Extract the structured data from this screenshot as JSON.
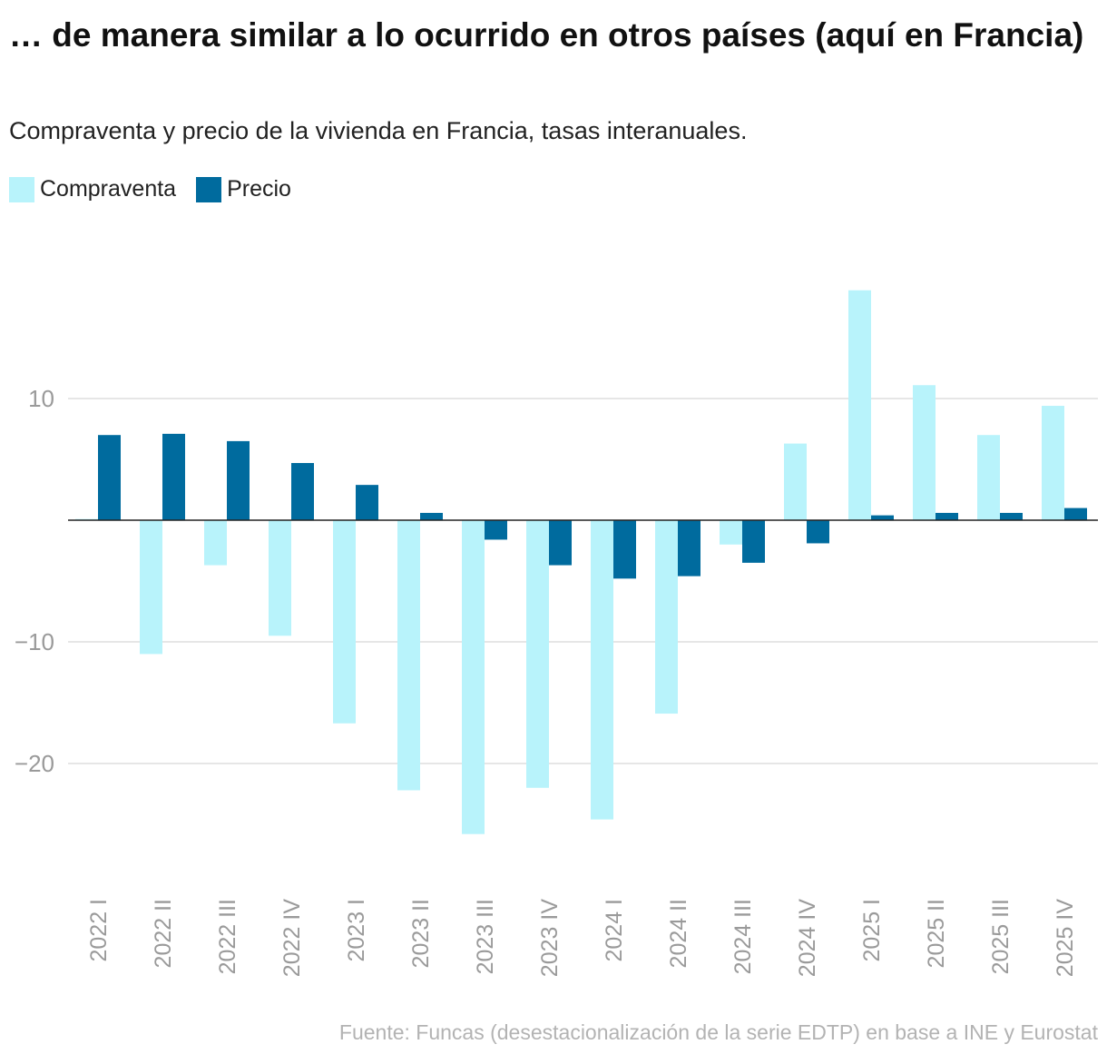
{
  "chart_data": {
    "type": "bar",
    "title": "… de manera similar a lo ocurrido en otros países (aquí en Francia)",
    "subtitle": "Compraventa y precio de la vivienda en Francia, tasas interanuales.",
    "categories": [
      "2022 I",
      "2022 II",
      "2022 III",
      "2022 IV",
      "2023 I",
      "2023 II",
      "2023 III",
      "2023 IV",
      "2024 I",
      "2024 II",
      "2024 III",
      "2024 IV",
      "2025 I",
      "2025 II",
      "2025 III",
      "2025 IV"
    ],
    "series": [
      {
        "name": "Compraventa",
        "color": "#b8f3fb",
        "values": [
          0.1,
          -11.0,
          -3.7,
          -9.5,
          -16.7,
          -22.2,
          -25.8,
          -22.0,
          -24.6,
          -15.9,
          -2.0,
          6.3,
          18.9,
          11.1,
          7.0,
          9.4
        ]
      },
      {
        "name": "Precio",
        "color": "#006b9e",
        "values": [
          7.0,
          7.1,
          6.5,
          4.7,
          2.9,
          0.6,
          -1.6,
          -3.7,
          -4.8,
          -4.6,
          -3.5,
          -1.9,
          0.4,
          0.6,
          0.6,
          1.0
        ]
      }
    ],
    "yticks": [
      10,
      -10,
      -20
    ],
    "ytick_labels": [
      "10",
      "−10",
      "−20"
    ],
    "ylim": [
      -28.5,
      26.3
    ],
    "grid": true,
    "legend_position": "top-left",
    "source": "Fuente: Funcas (desestacionalización de la serie EDTP) en base a INE y Eurostat"
  }
}
